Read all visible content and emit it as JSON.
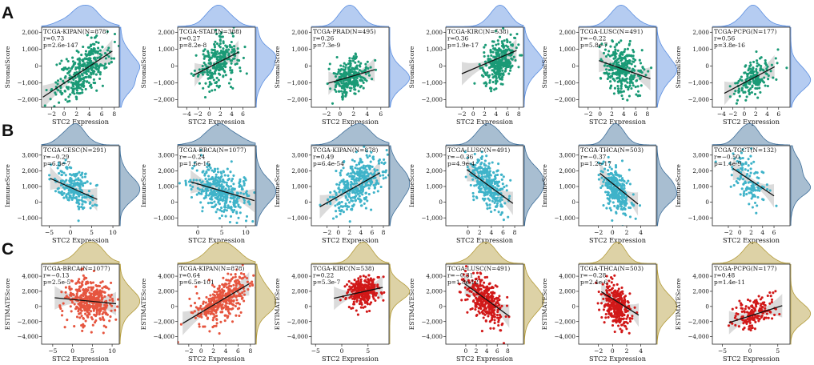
{
  "figure": {
    "row_labels": [
      "A",
      "B",
      "C"
    ]
  },
  "chart_data": [
    {
      "type": "scatter",
      "row": 0,
      "col": 0,
      "cohort": "TCGA-KIPAN",
      "n": "878",
      "title": "TCGA-KIPAN(N=878)",
      "r": "r=0.73",
      "p": "p=2.6e-147",
      "xlabel": "STC2 Expression",
      "ylabel": "StromalScore",
      "xlim": [
        -3.6,
        8.8
      ],
      "ylim": [
        -2450,
        2300
      ],
      "xticks": [
        -2,
        0,
        2,
        4,
        6,
        8
      ],
      "yticks": [
        -2000,
        -1000,
        0,
        1000,
        2000
      ],
      "ytick_labels": [
        "−2,000",
        "−1,000",
        "0",
        "1,000",
        "2,000"
      ],
      "xtick_labels": [
        "−2",
        "0",
        "2",
        "4",
        "6",
        "8"
      ],
      "fit": {
        "x": [
          -3.4,
          7.7
        ],
        "y": [
          -1850,
          880
        ]
      },
      "cloud": {
        "cx": 3.0,
        "cy": -250,
        "sx": 2.2,
        "sy": 700,
        "n": 340
      },
      "color": "#1a9a76",
      "marg_color": "#5b8ee0"
    },
    {
      "type": "scatter",
      "row": 0,
      "col": 1,
      "cohort": "TCGA-STAD",
      "n": "388",
      "title": "TCGA-STAD(N=388)",
      "r": "r=0.27",
      "p": "p=8.2e-8",
      "xlabel": "STC2 Expression",
      "ylabel": "StromalScore",
      "xlim": [
        -5.6,
        8.2
      ],
      "ylim": [
        -2450,
        2300
      ],
      "xticks": [
        -4,
        -2,
        0,
        2,
        4,
        6
      ],
      "yticks": [
        -2000,
        -1000,
        0,
        1000,
        2000
      ],
      "ytick_labels": [
        "−2,000",
        "−1,000",
        "0",
        "1,000",
        "2,000"
      ],
      "xtick_labels": [
        "−4",
        "−2",
        "0",
        "2",
        "4",
        "6"
      ],
      "fit": {
        "x": [
          -2.6,
          5.2
        ],
        "y": [
          -520,
          820
        ]
      },
      "cloud": {
        "cx": 1.4,
        "cy": 100,
        "sx": 1.8,
        "sy": 700,
        "n": 260
      },
      "color": "#1a9a76",
      "marg_color": "#5b8ee0"
    },
    {
      "type": "scatter",
      "row": 0,
      "col": 2,
      "cohort": "TCGA-PRAD",
      "n": "495",
      "title": "TCGA-PRAD(N=495)",
      "r": "r=0.26",
      "p": "p=7.3e-9",
      "xlabel": "STC2 Expression",
      "ylabel": "StromalScore",
      "xlim": [
        -4.2,
        7.2
      ],
      "ylim": [
        -2450,
        2300
      ],
      "xticks": [
        -2,
        0,
        2,
        4,
        6
      ],
      "yticks": [
        -2000,
        -1000,
        0,
        1000,
        2000
      ],
      "ytick_labels": [
        "−2,000",
        "−1,000",
        "0",
        "1,000",
        "2,000"
      ],
      "xtick_labels": [
        "−2",
        "0",
        "2",
        "4",
        "6"
      ],
      "fit": {
        "x": [
          -1.7,
          5.1
        ],
        "y": [
          -1020,
          -220
        ]
      },
      "cloud": {
        "cx": 1.5,
        "cy": -650,
        "sx": 1.2,
        "sy": 500,
        "n": 280
      },
      "color": "#1a9a76",
      "marg_color": "#5b8ee0"
    },
    {
      "type": "scatter",
      "row": 0,
      "col": 3,
      "cohort": "TCGA-KIRC",
      "n": "538",
      "title": "TCGA-KIRC(N=538)",
      "r": "r=0.36",
      "p": "p=1.9e-17",
      "xlabel": "STC2 Expression",
      "ylabel": "StromalScore",
      "xlim": [
        -4.8,
        8.8
      ],
      "ylim": [
        -2450,
        2300
      ],
      "xticks": [
        -2,
        0,
        2,
        4,
        6,
        8
      ],
      "yticks": [
        -2000,
        -1000,
        0,
        1000,
        2000
      ],
      "ytick_labels": [
        "−2,000",
        "−1,000",
        "0",
        "1,000",
        "2,000"
      ],
      "xtick_labels": [
        "−2",
        "0",
        "2",
        "4",
        "6",
        "8"
      ],
      "fit": {
        "x": [
          -2.0,
          7.6
        ],
        "y": [
          -460,
          920
        ]
      },
      "cloud": {
        "cx": 4.6,
        "cy": 250,
        "sx": 1.6,
        "sy": 650,
        "n": 300
      },
      "color": "#1a9a76",
      "marg_color": "#5b8ee0"
    },
    {
      "type": "scatter",
      "row": 0,
      "col": 4,
      "cohort": "TCGA-LUSC",
      "n": "491",
      "title": "TCGA-LUSC(N=491)",
      "r": "r=−0.22",
      "p": "p=5.8e-7",
      "xlabel": "STC2 Expression",
      "ylabel": "StromalScore",
      "xlim": [
        -3.6,
        9.5
      ],
      "ylim": [
        -2450,
        2300
      ],
      "xticks": [
        -2,
        0,
        2,
        4,
        6,
        8
      ],
      "yticks": [
        -2000,
        -1000,
        0,
        1000,
        2000
      ],
      "ytick_labels": [
        "−2,000",
        "−1,000",
        "0",
        "1,000",
        "2,000"
      ],
      "xtick_labels": [
        "−2",
        "0",
        "2",
        "4",
        "6",
        "8"
      ],
      "fit": {
        "x": [
          -0.2,
          8.5
        ],
        "y": [
          320,
          -760
        ]
      },
      "cloud": {
        "cx": 3.7,
        "cy": -250,
        "sx": 1.6,
        "sy": 750,
        "n": 300
      },
      "color": "#1a9a76",
      "marg_color": "#5b8ee0"
    },
    {
      "type": "scatter",
      "row": 0,
      "col": 5,
      "cohort": "TCGA-PCPG",
      "n": "177",
      "title": "TCGA-PCPG(N=177)",
      "r": "r=0.56",
      "p": "p=3.8e-16",
      "xlabel": "STC2 Expression",
      "ylabel": "StromalScore",
      "xlim": [
        -5.6,
        8.0
      ],
      "ylim": [
        -2450,
        2300
      ],
      "xticks": [
        -4,
        -2,
        0,
        2,
        4,
        6
      ],
      "yticks": [
        -2000,
        -1000,
        0,
        1000,
        2000
      ],
      "ytick_labels": [
        "−2,000",
        "−1,000",
        "0",
        "1,000",
        "2,000"
      ],
      "xtick_labels": [
        "−4",
        "−2",
        "0",
        "2",
        "4",
        "6"
      ],
      "fit": {
        "x": [
          -3.5,
          5.3
        ],
        "y": [
          -1620,
          -50
        ]
      },
      "cloud": {
        "cx": 1.6,
        "cy": -700,
        "sx": 1.8,
        "sy": 500,
        "n": 170
      },
      "color": "#1a9a76",
      "marg_color": "#5b8ee0"
    },
    {
      "type": "scatter",
      "row": 1,
      "col": 0,
      "cohort": "TCGA-CESC",
      "n": "291",
      "title": "TCGA-CESC(N=291)",
      "r": "r=−0.29",
      "p": "p=6.3e-7",
      "xlabel": "STC2 Expression",
      "ylabel": "ImmuneScore",
      "xlim": [
        -6.8,
        11.5
      ],
      "ylim": [
        -1500,
        3600
      ],
      "xticks": [
        -5,
        0,
        5,
        10
      ],
      "yticks": [
        -1000,
        0,
        1000,
        2000,
        3000
      ],
      "ytick_labels": [
        "−1,000",
        "0",
        "1,000",
        "2,000",
        "3,000"
      ],
      "xtick_labels": [
        "−5",
        "0",
        "5",
        "10"
      ],
      "fit": {
        "x": [
          -4.8,
          6.3
        ],
        "y": [
          1520,
          180
        ]
      },
      "cloud": {
        "cx": 0.8,
        "cy": 900,
        "sx": 2.3,
        "sy": 650,
        "n": 230
      },
      "color": "#3fb3c9",
      "marg_color": "#3f6f9a"
    },
    {
      "type": "scatter",
      "row": 1,
      "col": 1,
      "cohort": "TCGA-BRCA",
      "n": "1077",
      "title": "TCGA-BRCA(N=1077)",
      "r": "r=−0.24",
      "p": "p=1.6e-15",
      "xlabel": "STC2 Expression",
      "ylabel": "ImmuneScore",
      "xlim": [
        -4.2,
        12.0
      ],
      "ylim": [
        -1500,
        3600
      ],
      "xticks": [
        0,
        5,
        10
      ],
      "yticks": [
        -1000,
        0,
        1000,
        2000,
        3000
      ],
      "ytick_labels": [
        "−1,000",
        "0",
        "1,000",
        "2,000",
        "3,000"
      ],
      "xtick_labels": [
        "0",
        "5",
        "10"
      ],
      "fit": {
        "x": [
          -1.5,
          11.8
        ],
        "y": [
          1300,
          100
        ]
      },
      "cloud": {
        "cx": 5.0,
        "cy": 700,
        "sx": 2.8,
        "sy": 700,
        "n": 380
      },
      "color": "#3fb3c9",
      "marg_color": "#3f6f9a"
    },
    {
      "type": "scatter",
      "row": 1,
      "col": 2,
      "cohort": "TCGA-KIPAN",
      "n": "878",
      "title": "TCGA-KIPAN(N=878)",
      "r": "r=0.49",
      "p": "p=6.4e-54",
      "xlabel": "STC2 Expression",
      "ylabel": "ImmuneScore",
      "xlim": [
        -4.8,
        9.0
      ],
      "ylim": [
        -1500,
        3600
      ],
      "xticks": [
        -2,
        0,
        2,
        4,
        6,
        8
      ],
      "yticks": [
        -1000,
        0,
        1000,
        2000,
        3000
      ],
      "ytick_labels": [
        "−1,000",
        "0",
        "1,000",
        "2,000",
        "3,000"
      ],
      "xtick_labels": [
        "−2",
        "0",
        "2",
        "4",
        "6",
        "8"
      ],
      "fit": {
        "x": [
          -3.3,
          7.4
        ],
        "y": [
          -300,
          1870
        ]
      },
      "cloud": {
        "cx": 3.5,
        "cy": 1100,
        "sx": 2.2,
        "sy": 800,
        "n": 360
      },
      "color": "#3fb3c9",
      "marg_color": "#3f6f9a"
    },
    {
      "type": "scatter",
      "row": 1,
      "col": 3,
      "cohort": "TCGA-LUSC",
      "n": "491",
      "title": "TCGA-LUSC(N=491)",
      "r": "r=−0.36",
      "p": "p=4.9e-4",
      "xlabel": "STC2 Expression",
      "ylabel": "ImmuneScore",
      "xlim": [
        -3.8,
        9.5
      ],
      "ylim": [
        -1500,
        3600
      ],
      "xticks": [
        0,
        2,
        4,
        6,
        8
      ],
      "yticks": [
        -1000,
        0,
        1000,
        2000,
        3000
      ],
      "ytick_labels": [
        "−1,000",
        "0",
        "1,000",
        "2,000",
        "3,000"
      ],
      "xtick_labels": [
        "0",
        "2",
        "4",
        "6",
        "8"
      ],
      "fit": {
        "x": [
          -0.2,
          7.7
        ],
        "y": [
          2080,
          -80
        ]
      },
      "cloud": {
        "cx": 3.5,
        "cy": 1100,
        "sx": 1.6,
        "sy": 700,
        "n": 300
      },
      "color": "#3fb3c9",
      "marg_color": "#3f6f9a"
    },
    {
      "type": "scatter",
      "row": 1,
      "col": 4,
      "cohort": "TCGA-THCA",
      "n": "503",
      "title": "TCGA-THCA(N=503)",
      "r": "r=−0.37",
      "p": "p=1.2e-17",
      "xlabel": "STC2 Expression",
      "ylabel": "ImmuneScore",
      "xlim": [
        -4.8,
        6.2
      ],
      "ylim": [
        -1500,
        3600
      ],
      "xticks": [
        -2,
        0,
        2,
        4
      ],
      "yticks": [
        -1000,
        0,
        1000,
        2000,
        3000
      ],
      "ytick_labels": [
        "−1,000",
        "0",
        "1,000",
        "2,000",
        "3,000"
      ],
      "xtick_labels": [
        "−2",
        "0",
        "2",
        "4"
      ],
      "fit": {
        "x": [
          -1.8,
          3.6
        ],
        "y": [
          1840,
          -120
        ]
      },
      "cloud": {
        "cx": 0.4,
        "cy": 800,
        "sx": 1.0,
        "sy": 650,
        "n": 300
      },
      "color": "#3fb3c9",
      "marg_color": "#3f6f9a"
    },
    {
      "type": "scatter",
      "row": 1,
      "col": 5,
      "cohort": "TCGA-TGCT",
      "n": "132",
      "title": "TCGA-TGCT(N=132)",
      "r": "r=−0.50",
      "p": "p=1.4e-9",
      "xlabel": "STC2 Expression",
      "ylabel": "ImmuneScore",
      "xlim": [
        -4.8,
        8.8
      ],
      "ylim": [
        -1500,
        3600
      ],
      "xticks": [
        -2,
        0,
        2,
        4,
        6
      ],
      "yticks": [
        -1000,
        0,
        1000,
        2000,
        3000
      ],
      "ytick_labels": [
        "−1,000",
        "0",
        "1,000",
        "2,000",
        "3,000"
      ],
      "xtick_labels": [
        "−2",
        "0",
        "2",
        "4",
        "6"
      ],
      "fit": {
        "x": [
          -1.2,
          6.0
        ],
        "y": [
          2150,
          400
        ]
      },
      "cloud": {
        "cx": 1.6,
        "cy": 1500,
        "sx": 1.6,
        "sy": 800,
        "n": 130
      },
      "color": "#3fb3c9",
      "marg_color": "#3f6f9a"
    },
    {
      "type": "scatter",
      "row": 2,
      "col": 0,
      "cohort": "TCGA-BRCA",
      "n": "1077",
      "title": "TCGA-BRCA(N=1077)",
      "r": "r=−0.13",
      "p": "p=2.5e-5",
      "xlabel": "STC2 Expression",
      "ylabel": "ESTIMATEScore",
      "xlim": [
        -7.8,
        11.8
      ],
      "ylim": [
        -5000,
        5600
      ],
      "xticks": [
        -5,
        0,
        5,
        10
      ],
      "yticks": [
        -4000,
        -2000,
        0,
        2000,
        4000
      ],
      "ytick_labels": [
        "−4,000",
        "−2,000",
        "0",
        "2,000",
        "4,000"
      ],
      "xtick_labels": [
        "−5",
        "0",
        "5",
        "10"
      ],
      "fit": {
        "x": [
          -4.5,
          11.0
        ],
        "y": [
          1150,
          360
        ]
      },
      "cloud": {
        "cx": 4.5,
        "cy": 600,
        "sx": 3.0,
        "sy": 1400,
        "n": 400
      },
      "color": "#e6553f",
      "marg_color": "#b39b3a"
    },
    {
      "type": "scatter",
      "row": 2,
      "col": 1,
      "cohort": "TCGA-KIPAN",
      "n": "878",
      "title": "TCGA-KIPAN(N=878)",
      "r": "r=0.64",
      "p": "p=6.5e-101",
      "xlabel": "STC2 Expression",
      "ylabel": "ESTIMATEScore",
      "xlim": [
        -3.8,
        8.8
      ],
      "ylim": [
        -5000,
        5600
      ],
      "xticks": [
        -2,
        0,
        2,
        4,
        6,
        8
      ],
      "yticks": [
        -4000,
        -2000,
        0,
        2000,
        4000
      ],
      "ytick_labels": [
        "−4,000",
        "−2,000",
        "0",
        "2,000",
        "4,000"
      ],
      "xtick_labels": [
        "−2",
        "0",
        "2",
        "4",
        "6",
        "8"
      ],
      "fit": {
        "x": [
          -3.0,
          7.8
        ],
        "y": [
          -2250,
          3000
        ]
      },
      "cloud": {
        "cx": 3.5,
        "cy": 900,
        "sx": 2.2,
        "sy": 1300,
        "n": 380
      },
      "color": "#e6553f",
      "marg_color": "#b39b3a"
    },
    {
      "type": "scatter",
      "row": 2,
      "col": 2,
      "cohort": "TCGA-KIRC",
      "n": "538",
      "title": "TCGA-KIRC(N=538)",
      "r": "r=0.22",
      "p": "p=5.3e-7",
      "xlabel": "STC2 Expression",
      "ylabel": "ESTIMATEScore",
      "xlim": [
        -5.8,
        9.0
      ],
      "ylim": [
        -5000,
        5600
      ],
      "xticks": [
        -5,
        0,
        5
      ],
      "yticks": [
        -4000,
        -2000,
        0,
        2000,
        4000
      ],
      "ytick_labels": [
        "−4,000",
        "−2,000",
        "0",
        "2,000",
        "4,000"
      ],
      "xtick_labels": [
        "−5",
        "0",
        "5"
      ],
      "fit": {
        "x": [
          -1.5,
          7.8
        ],
        "y": [
          1080,
          2520
        ]
      },
      "cloud": {
        "cx": 4.0,
        "cy": 1900,
        "sx": 1.6,
        "sy": 900,
        "n": 300
      },
      "color": "#d11818",
      "marg_color": "#b39b3a"
    },
    {
      "type": "scatter",
      "row": 2,
      "col": 3,
      "cohort": "TCGA-LUSC",
      "n": "491",
      "title": "TCGA-LUSC(N=491)",
      "r": "r=−0.31",
      "p": "p=1.8e-12",
      "xlabel": "STC2 Expression",
      "ylabel": "ESTIMATEScore",
      "xlim": [
        -3.8,
        11.0
      ],
      "ylim": [
        -5000,
        5600
      ],
      "xticks": [
        0,
        2,
        4,
        6,
        8
      ],
      "yticks": [
        -4000,
        -2000,
        0,
        2000,
        4000
      ],
      "ytick_labels": [
        "−4,000",
        "−2,000",
        "0",
        "2,000",
        "4,000"
      ],
      "xtick_labels": [
        "0",
        "2",
        "4",
        "6",
        "8"
      ],
      "fit": {
        "x": [
          -0.2,
          8.3
        ],
        "y": [
          3000,
          -1300
        ]
      },
      "cloud": {
        "cx": 3.5,
        "cy": 900,
        "sx": 1.7,
        "sy": 1300,
        "n": 320
      },
      "color": "#d11818",
      "marg_color": "#b39b3a"
    },
    {
      "type": "scatter",
      "row": 2,
      "col": 4,
      "cohort": "TCGA-THCA",
      "n": "503",
      "title": "TCGA-THCA(N=503)",
      "r": "r=−0.28",
      "p": "p=2.4e-6",
      "xlabel": "STC2 Expression",
      "ylabel": "ESTIMATEScore",
      "xlim": [
        -4.8,
        6.2
      ],
      "ylim": [
        -5000,
        5600
      ],
      "xticks": [
        -2,
        0,
        2,
        4
      ],
      "yticks": [
        -4000,
        -2000,
        0,
        2000,
        4000
      ],
      "ytick_labels": [
        "−4,000",
        "−2,000",
        "0",
        "2,000",
        "4,000"
      ],
      "xtick_labels": [
        "−2",
        "0",
        "2",
        "4"
      ],
      "fit": {
        "x": [
          -1.6,
          3.7
        ],
        "y": [
          1950,
          -1150
        ]
      },
      "cloud": {
        "cx": 0.5,
        "cy": 200,
        "sx": 1.0,
        "sy": 1300,
        "n": 320
      },
      "color": "#d11818",
      "marg_color": "#b39b3a"
    },
    {
      "type": "scatter",
      "row": 2,
      "col": 5,
      "cohort": "TCGA-PCPG",
      "n": "177",
      "title": "TCGA-PCPG(N=177)",
      "r": "r=0.48",
      "p": "p=1.4e-11",
      "xlabel": "STC2 Expression",
      "ylabel": "ESTIMATEScore",
      "xlim": [
        -6.8,
        7.2
      ],
      "ylim": [
        -5000,
        5600
      ],
      "xticks": [
        -5,
        0,
        5
      ],
      "yticks": [
        -4000,
        -2000,
        0,
        2000,
        4000
      ],
      "ytick_labels": [
        "−4,000",
        "−2,000",
        "0",
        "2,000",
        "4,000"
      ],
      "xtick_labels": [
        "−5",
        "0",
        "5"
      ],
      "fit": {
        "x": [
          -3.8,
          5.8
        ],
        "y": [
          -2150,
          100
        ]
      },
      "cloud": {
        "cx": 0.6,
        "cy": -900,
        "sx": 1.9,
        "sy": 1000,
        "n": 170
      },
      "color": "#d11818",
      "marg_color": "#b39b3a"
    }
  ]
}
